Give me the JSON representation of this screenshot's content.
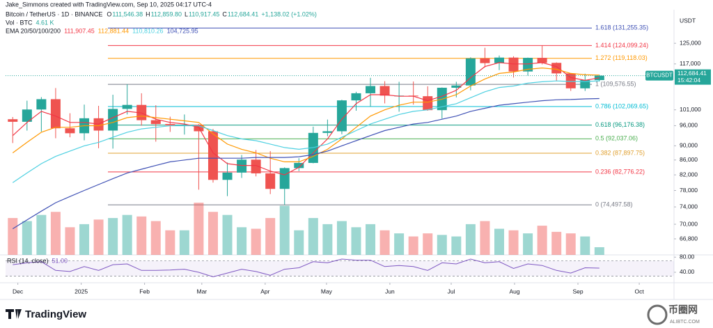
{
  "chart_data": {
    "type": "candlestick",
    "credit": "Jake_Simmons created with TradingView.com, Sep 10, 2025 04:17 UTC-4",
    "title": "Bitcoin / TetherUS · 1D · BINANCE",
    "ohlc_header": [
      {
        "key": "O",
        "value": "111,546.38"
      },
      {
        "key": "H",
        "value": "112,859.80"
      },
      {
        "key": "L",
        "value": "110,917.45"
      },
      {
        "key": "C",
        "value": "112,684.41"
      }
    ],
    "change": "+1,138.02 (+1.02%)",
    "volume_label": "Vol · BTC",
    "volume_last": "4.61 K",
    "ema_label": "EMA 20/50/100/200",
    "x": [
      "2024-11-25",
      "2024-12-02",
      "2024-12-09",
      "2024-12-16",
      "2024-12-23",
      "2024-12-30",
      "2025-01-06",
      "2025-01-13",
      "2025-01-20",
      "2025-01-27",
      "2025-02-03",
      "2025-02-10",
      "2025-02-17",
      "2025-02-24",
      "2025-03-03",
      "2025-03-10",
      "2025-03-17",
      "2025-03-24",
      "2025-03-31",
      "2025-04-07",
      "2025-04-14",
      "2025-04-21",
      "2025-04-28",
      "2025-05-05",
      "2025-05-12",
      "2025-05-19",
      "2025-05-26",
      "2025-06-02",
      "2025-06-09",
      "2025-06-16",
      "2025-06-23",
      "2025-06-30",
      "2025-07-07",
      "2025-07-14",
      "2025-07-21",
      "2025-07-28",
      "2025-08-04",
      "2025-08-11",
      "2025-08-18",
      "2025-08-25",
      "2025-09-01",
      "2025-09-08"
    ],
    "open": [
      98000,
      97200,
      101100,
      104500,
      95200,
      93700,
      98300,
      94500,
      101300,
      102600,
      97700,
      96500,
      96100,
      96300,
      94300,
      80700,
      82600,
      86100,
      82400,
      78400,
      83800,
      85200,
      93800,
      94300,
      104100,
      106500,
      109000,
      105700,
      105700,
      105500,
      100900,
      108400,
      109200,
      119100,
      117300,
      119400,
      114200,
      119300,
      117400,
      113500,
      108200,
      111100
    ],
    "high": [
      98700,
      104000,
      105200,
      108300,
      99900,
      102700,
      102300,
      106000,
      109600,
      106500,
      102500,
      98800,
      99500,
      96500,
      95000,
      85300,
      87400,
      88800,
      88500,
      84000,
      86500,
      95700,
      97900,
      104300,
      107000,
      111900,
      110700,
      110500,
      110600,
      108900,
      108500,
      110500,
      119500,
      123200,
      120200,
      119900,
      119400,
      124100,
      117600,
      113600,
      113400,
      113000
    ],
    "low": [
      90800,
      94500,
      94200,
      92200,
      92500,
      91600,
      89300,
      89200,
      99500,
      96000,
      91200,
      94100,
      93300,
      78200,
      80000,
      76600,
      81200,
      81600,
      77100,
      74500,
      83000,
      85100,
      92800,
      93400,
      100700,
      102000,
      103100,
      100400,
      102700,
      100700,
      98200,
      105100,
      107500,
      115700,
      114700,
      112000,
      112700,
      116800,
      110700,
      107300,
      107300,
      110600
    ],
    "close": [
      97200,
      101100,
      104500,
      95200,
      93700,
      98300,
      94500,
      101300,
      102600,
      97700,
      96500,
      96100,
      96300,
      94300,
      80700,
      82600,
      86100,
      82400,
      78400,
      83800,
      85200,
      93800,
      94300,
      104100,
      106500,
      109000,
      105700,
      105700,
      105500,
      100900,
      108400,
      109200,
      119100,
      117300,
      119400,
      114200,
      119300,
      117400,
      113500,
      108200,
      111100,
      112684.41
    ],
    "up_color": "#26a69a",
    "down_color": "#ef5350",
    "volume": [
      120,
      110,
      130,
      140,
      90,
      100,
      115,
      120,
      130,
      125,
      110,
      80,
      80,
      170,
      140,
      130,
      90,
      85,
      120,
      160,
      80,
      120,
      100,
      110,
      90,
      100,
      80,
      70,
      60,
      70,
      65,
      60,
      100,
      110,
      85,
      80,
      70,
      95,
      75,
      70,
      60,
      25
    ],
    "series": [
      {
        "color": "#f23645",
        "value_label": "111,907.45",
        "values": [
          93000,
          97000,
          100500,
          99000,
          97000,
          97000,
          96500,
          98500,
          100500,
          100000,
          98000,
          97000,
          96500,
          95500,
          88000,
          85000,
          84500,
          84500,
          83000,
          82000,
          84000,
          88000,
          92000,
          98000,
          103000,
          106000,
          106000,
          105500,
          105500,
          104000,
          105500,
          107500,
          112000,
          116000,
          117500,
          117000,
          117000,
          117500,
          116000,
          112000,
          111000,
          111907.45
        ]
      },
      {
        "color": "#ff9800",
        "value_label": "112,881.44",
        "values": [
          88000,
          91000,
          94000,
          95500,
          95500,
          96000,
          96000,
          97000,
          98500,
          99000,
          98500,
          98000,
          97500,
          97000,
          93500,
          90500,
          89000,
          88000,
          86500,
          85500,
          85500,
          87000,
          89000,
          92000,
          95500,
          99000,
          101000,
          102500,
          103500,
          103500,
          104500,
          106000,
          109000,
          111500,
          113500,
          114000,
          115000,
          115500,
          115000,
          113500,
          113000,
          112881.44
        ]
      },
      {
        "color": "#4dd0e1",
        "value_label": "110,810.26",
        "values": [
          80000,
          82500,
          85000,
          87000,
          88500,
          90000,
          91000,
          92500,
          94000,
          95000,
          95500,
          96000,
          96000,
          96000,
          94500,
          93000,
          92000,
          91500,
          90500,
          89500,
          89000,
          89500,
          90500,
          92500,
          94500,
          96500,
          98000,
          99500,
          100500,
          101000,
          102000,
          103000,
          105000,
          107000,
          108500,
          109000,
          110000,
          110500,
          110800,
          110600,
          110600,
          110810.26
        ]
      },
      {
        "color": "#3f51b5",
        "value_label": "104,725.95",
        "values": [
          69000,
          71000,
          73000,
          75000,
          76500,
          78000,
          79500,
          81000,
          82500,
          83500,
          84500,
          85500,
          86000,
          86500,
          86500,
          86500,
          86500,
          86700,
          86700,
          86700,
          86900,
          87500,
          88500,
          90000,
          91500,
          93000,
          94500,
          95500,
          96500,
          97000,
          98000,
          99000,
          100500,
          101500,
          102500,
          103000,
          103500,
          104000,
          104300,
          104400,
          104600,
          104725.95
        ]
      }
    ],
    "log": true,
    "y_axis_label": "USDT",
    "ylim": [
      63460,
      139170
    ],
    "yticks": [
      {
        "value": 125000,
        "label": "125,000"
      },
      {
        "value": 117000,
        "label": "117,000"
      },
      {
        "value": 101000,
        "label": "101,000"
      },
      {
        "value": 96000,
        "label": "96,000"
      },
      {
        "value": 90000,
        "label": "90,000"
      },
      {
        "value": 86000,
        "label": "86,000"
      },
      {
        "value": 82000,
        "label": "82,000"
      },
      {
        "value": 78000,
        "label": "78,000"
      },
      {
        "value": 74000,
        "label": "74,000"
      },
      {
        "value": 70000,
        "label": "70,000"
      },
      {
        "value": 66800,
        "label": "66,800"
      }
    ],
    "xlim": [
      "2024-11-25",
      "2025-10-18"
    ],
    "xticks": [
      {
        "value": "2024-12-01",
        "label": "Dec"
      },
      {
        "value": "2025-01-01",
        "label": "2025"
      },
      {
        "value": "2025-02-01",
        "label": "Feb"
      },
      {
        "value": "2025-03-01",
        "label": "Mar"
      },
      {
        "value": "2025-04-01",
        "label": "Apr"
      },
      {
        "value": "2025-05-01",
        "label": "May"
      },
      {
        "value": "2025-06-01",
        "label": "Jun"
      },
      {
        "value": "2025-07-01",
        "label": "Jul"
      },
      {
        "value": "2025-08-01",
        "label": "Aug"
      },
      {
        "value": "2025-09-01",
        "label": "Sep"
      },
      {
        "value": "2025-10-01",
        "label": "Oct"
      }
    ],
    "fib_levels": [
      {
        "price": 131255.35,
        "label": "1.618 (131,255.35)",
        "color": "#3f51b5"
      },
      {
        "price": 124099.24,
        "label": "1.414 (124,099.24)",
        "color": "#f23645"
      },
      {
        "price": 119118.03,
        "label": "1.272 (119,118.03)",
        "color": "#ff9800"
      },
      {
        "price": 109576.55,
        "label": "1 (109,576.55)",
        "color": "#787b86"
      },
      {
        "price": 102069.65,
        "label": "0.786 (102,069.65)",
        "color": "#00bcd4"
      },
      {
        "price": 96176.38,
        "label": "0.618 (96,176.38)",
        "color": "#089981"
      },
      {
        "price": 92037.06,
        "label": "0.5 (92,037.06)",
        "color": "#4caf50"
      },
      {
        "price": 87897.75,
        "label": "0.382 (87,897.75)",
        "color": "#e0a030"
      },
      {
        "price": 82776.22,
        "label": "0.236 (82,776.22)",
        "color": "#f23645"
      },
      {
        "price": 74497.58,
        "label": "0 (74,497.58)",
        "color": "#787b86"
      }
    ],
    "last_price": {
      "symbol": "BTCUSDT",
      "price_label": "112,684.41",
      "countdown": "15:42:04"
    },
    "rsi": {
      "label": "RSI (14, close)",
      "last_label": "51.00",
      "color": "#7e57c2",
      "values": [
        60,
        65,
        68,
        45,
        42,
        55,
        45,
        60,
        62,
        45,
        45,
        46,
        48,
        40,
        28,
        38,
        48,
        42,
        32,
        48,
        52,
        68,
        65,
        75,
        72,
        72,
        55,
        58,
        55,
        45,
        65,
        62,
        75,
        65,
        68,
        50,
        62,
        58,
        45,
        38,
        52,
        51
      ],
      "band": [
        30,
        70
      ],
      "ylim": [
        16,
        86
      ],
      "yticks": [
        {
          "value": 80,
          "label": "80.00"
        },
        {
          "value": 40,
          "label": "40.00"
        }
      ]
    }
  },
  "footer": {
    "brand": "TradingView",
    "watermark": "币圈网",
    "watermark_url": "ALIBTC.COM"
  }
}
